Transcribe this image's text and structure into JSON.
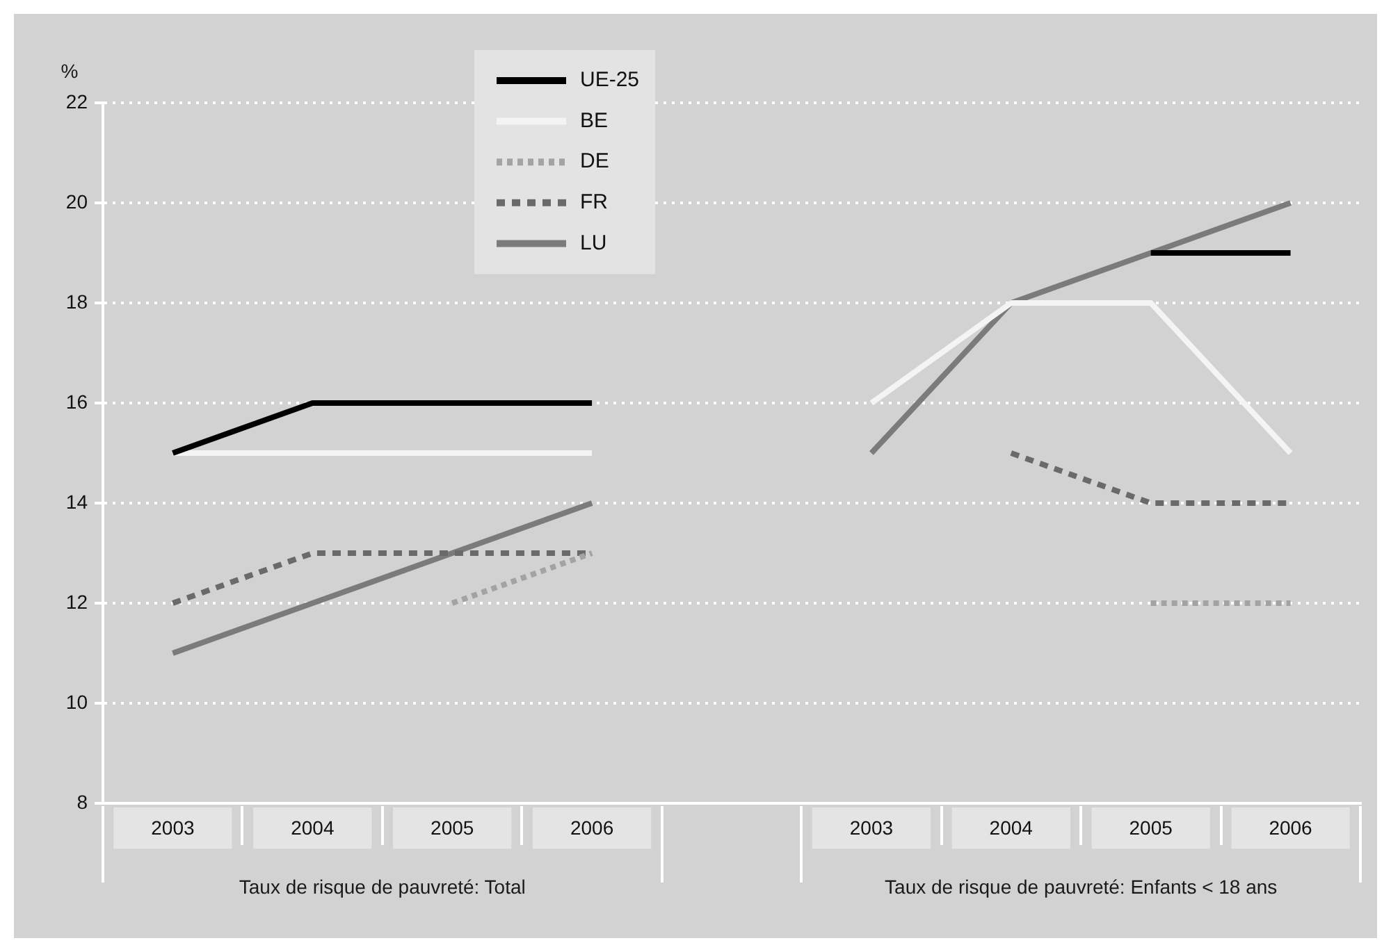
{
  "chart_data": {
    "type": "line",
    "ylabel": "%",
    "categories": [
      "2003",
      "2004",
      "2005",
      "2006",
      null,
      "2003",
      "2004",
      "2005",
      "2006"
    ],
    "series": [
      {
        "name": "UE-25",
        "color": "#000000",
        "line_style": "solid",
        "values": [
          15,
          16,
          16,
          16,
          null,
          null,
          null,
          19,
          19
        ]
      },
      {
        "name": "BE",
        "color": "#f4f4f4",
        "line_style": "solid",
        "values": [
          15,
          15,
          15,
          15,
          null,
          16,
          18,
          18,
          15
        ]
      },
      {
        "name": "DE",
        "color": "#a3a3a3",
        "line_style": "dotted",
        "values": [
          null,
          null,
          12,
          13,
          null,
          null,
          null,
          12,
          12
        ]
      },
      {
        "name": "FR",
        "color": "#6a6a6a",
        "line_style": "dashed",
        "values": [
          12,
          13,
          13,
          13,
          null,
          null,
          15,
          14,
          14
        ]
      },
      {
        "name": "LU",
        "color": "#7b7b7b",
        "line_style": "solid",
        "values": [
          11,
          12,
          13,
          14,
          null,
          15,
          18,
          19,
          20
        ]
      }
    ],
    "ylim": [
      8,
      22
    ],
    "yticks": [
      8,
      10,
      12,
      14,
      16,
      18,
      20,
      22
    ],
    "grid": "y",
    "legend": "top left",
    "marker": "none",
    "annotations": [
      "Taux de risque de pauvreté: Total",
      "Taux de risque de pauvreté: Enfants < 18 ans"
    ]
  }
}
